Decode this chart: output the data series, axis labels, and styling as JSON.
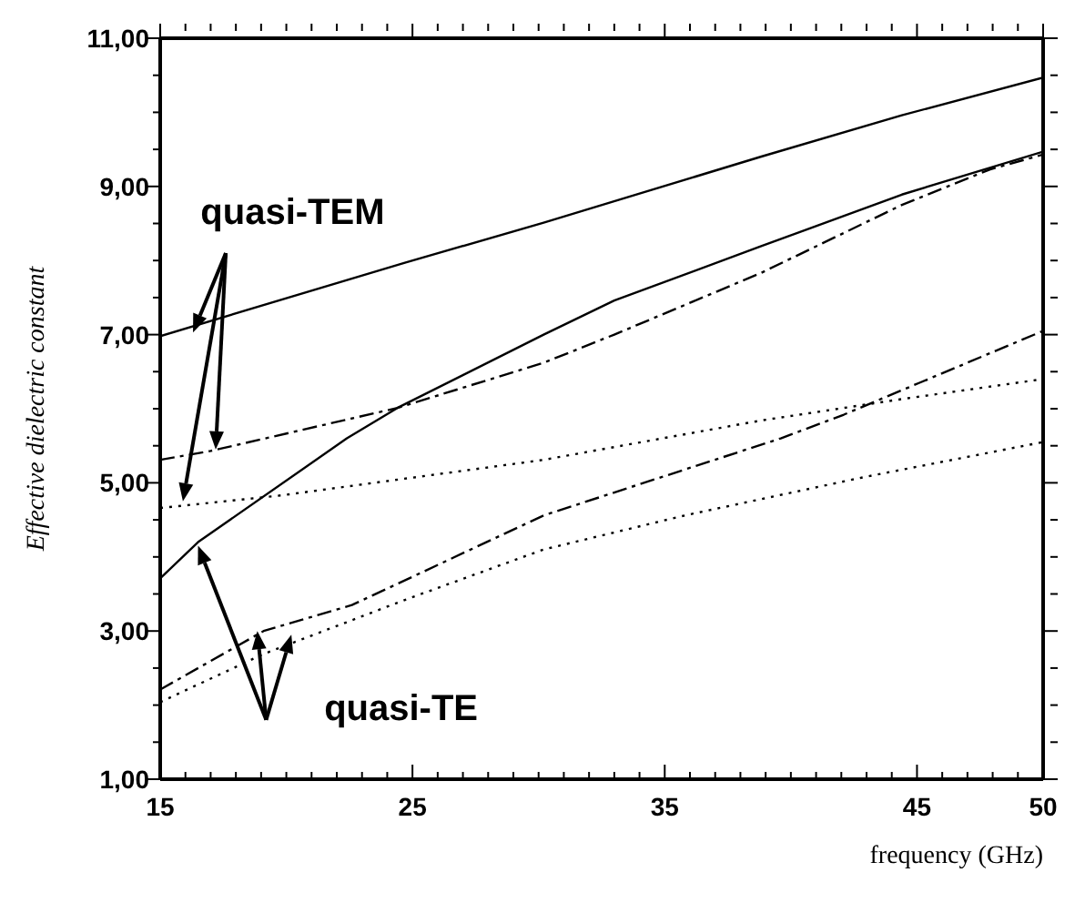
{
  "chart_data": {
    "type": "line",
    "xlabel": "frequency (GHz)",
    "ylabel": "Effective dielectric constant",
    "xlim": [
      15,
      50
    ],
    "ylim": [
      1,
      11
    ],
    "xticks": [
      {
        "value": 15,
        "label": "15"
      },
      {
        "value": 16,
        "label": null
      },
      {
        "value": 17,
        "label": null
      },
      {
        "value": 18,
        "label": null
      },
      {
        "value": 19,
        "label": null
      },
      {
        "value": 20,
        "label": null
      },
      {
        "value": 21,
        "label": null
      },
      {
        "value": 22,
        "label": null
      },
      {
        "value": 23,
        "label": null
      },
      {
        "value": 24,
        "label": null
      },
      {
        "value": 25,
        "label": "25"
      },
      {
        "value": 26,
        "label": null
      },
      {
        "value": 27,
        "label": null
      },
      {
        "value": 28,
        "label": null
      },
      {
        "value": 29,
        "label": null
      },
      {
        "value": 30,
        "label": null
      },
      {
        "value": 31,
        "label": null
      },
      {
        "value": 32,
        "label": null
      },
      {
        "value": 33,
        "label": null
      },
      {
        "value": 34,
        "label": null
      },
      {
        "value": 35,
        "label": "35"
      },
      {
        "value": 36,
        "label": null
      },
      {
        "value": 37,
        "label": null
      },
      {
        "value": 38,
        "label": null
      },
      {
        "value": 39,
        "label": null
      },
      {
        "value": 40,
        "label": null
      },
      {
        "value": 41,
        "label": null
      },
      {
        "value": 42,
        "label": null
      },
      {
        "value": 43,
        "label": null
      },
      {
        "value": 44,
        "label": null
      },
      {
        "value": 45,
        "label": "45"
      },
      {
        "value": 46,
        "label": null
      },
      {
        "value": 47,
        "label": null
      },
      {
        "value": 48,
        "label": null
      },
      {
        "value": 49,
        "label": null
      },
      {
        "value": 50,
        "label": "50"
      }
    ],
    "yticks": [
      {
        "value": 1,
        "label": "1,00"
      },
      {
        "value": 1.5,
        "label": null
      },
      {
        "value": 2,
        "label": null
      },
      {
        "value": 2.5,
        "label": null
      },
      {
        "value": 3,
        "label": "3,00"
      },
      {
        "value": 3.5,
        "label": null
      },
      {
        "value": 4,
        "label": null
      },
      {
        "value": 4.5,
        "label": null
      },
      {
        "value": 5,
        "label": "5,00"
      },
      {
        "value": 5.5,
        "label": null
      },
      {
        "value": 6,
        "label": null
      },
      {
        "value": 6.5,
        "label": null
      },
      {
        "value": 7,
        "label": "7,00"
      },
      {
        "value": 7.5,
        "label": null
      },
      {
        "value": 8,
        "label": null
      },
      {
        "value": 8.5,
        "label": null
      },
      {
        "value": 9,
        "label": "9,00"
      },
      {
        "value": 9.5,
        "label": null
      },
      {
        "value": 10,
        "label": null
      },
      {
        "value": 10.5,
        "label": null
      },
      {
        "value": 11,
        "label": "11,00"
      }
    ],
    "marker": "none",
    "annotations": [
      {
        "text": "quasi-TEM",
        "x": 16.3,
        "y": 7.03
      },
      "quasi-TE"
    ],
    "series": [
      {
        "color": "#000000",
        "line_style": "solid",
        "x": [
          15,
          24.7,
          30.2,
          33.2,
          38.8,
          44.4,
          50
        ],
        "values": [
          6.98,
          7.97,
          8.51,
          8.82,
          9.4,
          9.96,
          10.47
        ]
      },
      {
        "color": "#000000",
        "line_style": "solid",
        "x": [
          15,
          16.5,
          22.4,
          24.4,
          30.2,
          33,
          38.8,
          44.4,
          50
        ],
        "values": [
          3.71,
          4.2,
          5.6,
          6.01,
          7.0,
          7.46,
          8.19,
          8.89,
          9.47
        ]
      },
      {
        "color": "#000000",
        "line_style": "dashed",
        "x": [
          15,
          17,
          24.4,
          30.2,
          33,
          38.8,
          44.4,
          47.9,
          50
        ],
        "values": [
          5.31,
          5.43,
          6.01,
          6.62,
          7.0,
          7.83,
          8.75,
          9.23,
          9.43
        ]
      },
      {
        "color": "#000000",
        "line_style": "dotted",
        "x": [
          15,
          19.8,
          30.2,
          38.8,
          44.4,
          50
        ],
        "values": [
          4.66,
          4.83,
          5.31,
          5.84,
          6.13,
          6.4
        ]
      },
      {
        "color": "#000000",
        "line_style": "dashed",
        "x": [
          15,
          19.1,
          22.6,
          30.2,
          39.6,
          42.1,
          45.1,
          50
        ],
        "values": [
          2.21,
          3.0,
          3.35,
          4.56,
          5.6,
          5.92,
          6.35,
          7.05
        ]
      },
      {
        "color": "#000000",
        "line_style": "dotted",
        "x": [
          15,
          19.1,
          24.7,
          30.2,
          35.8,
          42.8,
          50
        ],
        "values": [
          2.04,
          2.69,
          3.42,
          4.1,
          4.56,
          5.07,
          5.55
        ]
      }
    ]
  }
}
